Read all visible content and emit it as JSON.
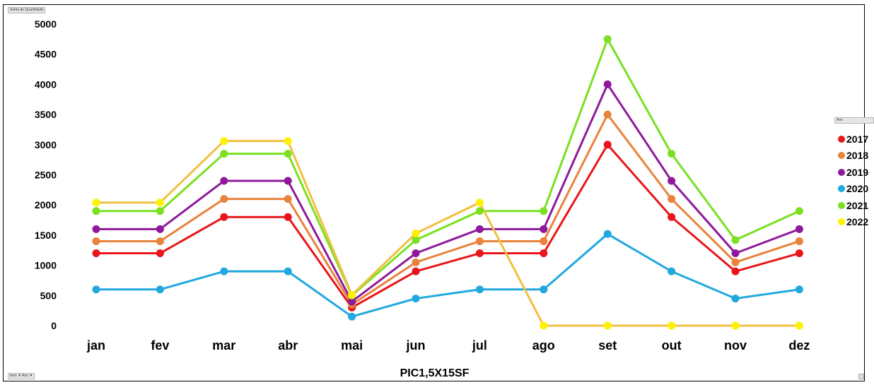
{
  "pivot": {
    "value_field": "Soma de Quantidade",
    "filter_fields": "Item ▼ Ano ▼",
    "legend_field": "Ano"
  },
  "chart_data": {
    "type": "line",
    "title": "PIC1,5X15SF",
    "xlabel": "",
    "ylabel": "",
    "categories": [
      "jan",
      "fev",
      "mar",
      "abr",
      "mai",
      "jun",
      "jul",
      "ago",
      "set",
      "out",
      "nov",
      "dez"
    ],
    "ylim": [
      0,
      5000
    ],
    "yticks": [
      "0",
      "500",
      "1000",
      "1500",
      "2000",
      "2500",
      "3000",
      "3500",
      "4000",
      "4500",
      "5000"
    ],
    "grid": false,
    "legend_position": "right",
    "series": [
      {
        "name": "2017",
        "color": "#e8161a",
        "values": [
          1200,
          1200,
          1800,
          1800,
          300,
          900,
          1200,
          1200,
          3000,
          1800,
          900,
          1200
        ]
      },
      {
        "name": "2018",
        "color": "#e9823a",
        "values": [
          1400,
          1400,
          2100,
          2100,
          350,
          1050,
          1400,
          1400,
          3500,
          2100,
          1050,
          1400
        ]
      },
      {
        "name": "2019",
        "color": "#8e1a9b",
        "values": [
          1600,
          1600,
          2400,
          2400,
          400,
          1200,
          1600,
          1600,
          4000,
          2400,
          1200,
          1600
        ]
      },
      {
        "name": "2020",
        "color": "#21a8df",
        "values": [
          600,
          600,
          900,
          900,
          150,
          450,
          600,
          600,
          1520,
          900,
          450,
          600
        ]
      },
      {
        "name": "2021",
        "color": "#7be021",
        "values": [
          1900,
          1900,
          2850,
          2850,
          500,
          1420,
          1900,
          1900,
          4750,
          2850,
          1420,
          1900
        ]
      },
      {
        "name": "2022",
        "color": "#fff200",
        "line_color": "#f0c040",
        "values": [
          2040,
          2040,
          3060,
          3060,
          510,
          1530,
          2040,
          0,
          0,
          0,
          0,
          0
        ]
      }
    ]
  }
}
